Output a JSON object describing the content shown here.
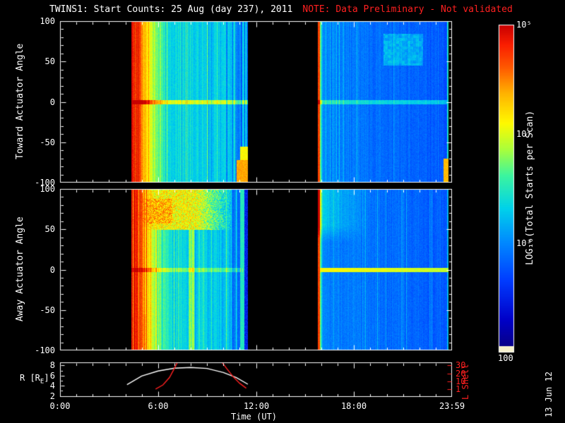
{
  "title": {
    "main": "TWINS1: Start Counts: 25 Aug (day 237), 2011",
    "note": "NOTE: Data Preliminary - Not validated"
  },
  "timestamp": "13 Jun 12",
  "colors": {
    "background": "#000000",
    "foreground": "#ffffff",
    "note": "#ff2020",
    "l_shell_axis": "#ff2020"
  },
  "chart_data": {
    "type": "heatmap",
    "xlabel": "Time (UT)",
    "x_range_hours": [
      0,
      24
    ],
    "x_ticks": [
      {
        "hour": 0,
        "label": "0:00"
      },
      {
        "hour": 6,
        "label": "6:00"
      },
      {
        "hour": 12,
        "label": "12:00"
      },
      {
        "hour": 18,
        "label": "18:00"
      },
      {
        "hour": 23.983,
        "label": "23:59"
      }
    ],
    "panels": [
      {
        "name": "toward",
        "ylabel": "Toward Actuator Angle",
        "ylim": [
          -100,
          100
        ],
        "yticks": [
          100,
          50,
          0,
          -50,
          -100
        ],
        "description": "Start counts near 10^5 (red/orange) at segment start ~4:30 UT decaying to ~10^3 (cyan/blue) by ~7:00; bright enhancement line at 0 deg; orange patch at angles < -60 near 11:20; second segment 15:50-23:50 mostly blue ~10^2.5 with red stripe at onset, cyan patches at high angles, orange patch bottom-right corner"
      },
      {
        "name": "away",
        "ylabel": "Away Actuator Angle",
        "ylim": [
          -100,
          100
        ],
        "yticks": [
          100,
          50,
          0,
          -50,
          -100
        ],
        "description": "Similar decay from red to cyan after ~4:30 UT; persistent yellow/orange band at angles > 50 until ~10:00; dark blue column at ~11:20; second segment mostly deep blue with red onset stripe, cyan upper-left region and orange line at 0 deg"
      }
    ],
    "colorbar": {
      "title": "LOG₁₀(Total Starts per Scan)",
      "ticks": [
        {
          "frac": 0.0,
          "label": "10⁵"
        },
        {
          "frac": 0.3333,
          "label": "10⁴"
        },
        {
          "frac": 0.6667,
          "label": "10³"
        }
      ],
      "bottom_label": "100",
      "scale_min": 100,
      "scale_max": 100000
    },
    "data_segments_hours": [
      [
        4.35,
        11.5
      ],
      [
        15.8,
        23.8
      ]
    ],
    "ephemeris": {
      "ylabel_prefix": "R [R",
      "ylabel_sub": "E",
      "ylabel_suffix": "]",
      "r_ticks": [
        2,
        4,
        6,
        8
      ],
      "r_curve_points": [
        [
          4.1,
          4.2
        ],
        [
          5,
          5.9
        ],
        [
          6,
          6.9
        ],
        [
          7,
          7.45
        ],
        [
          8,
          7.6
        ],
        [
          9,
          7.4
        ],
        [
          10,
          6.6
        ],
        [
          10.8,
          5.6
        ],
        [
          11.5,
          4.3
        ]
      ],
      "lshell_label": "L Shell",
      "l_ticks": [
        1,
        10,
        20,
        30
      ],
      "l_curve_rise": [
        [
          5.85,
          1
        ],
        [
          6.3,
          6
        ],
        [
          6.7,
          15
        ],
        [
          7.0,
          26
        ],
        [
          7.2,
          34
        ]
      ],
      "l_curve_fall": [
        [
          9.9,
          34
        ],
        [
          10.2,
          26
        ],
        [
          10.6,
          16
        ],
        [
          11.0,
          8
        ],
        [
          11.4,
          2
        ]
      ]
    }
  }
}
